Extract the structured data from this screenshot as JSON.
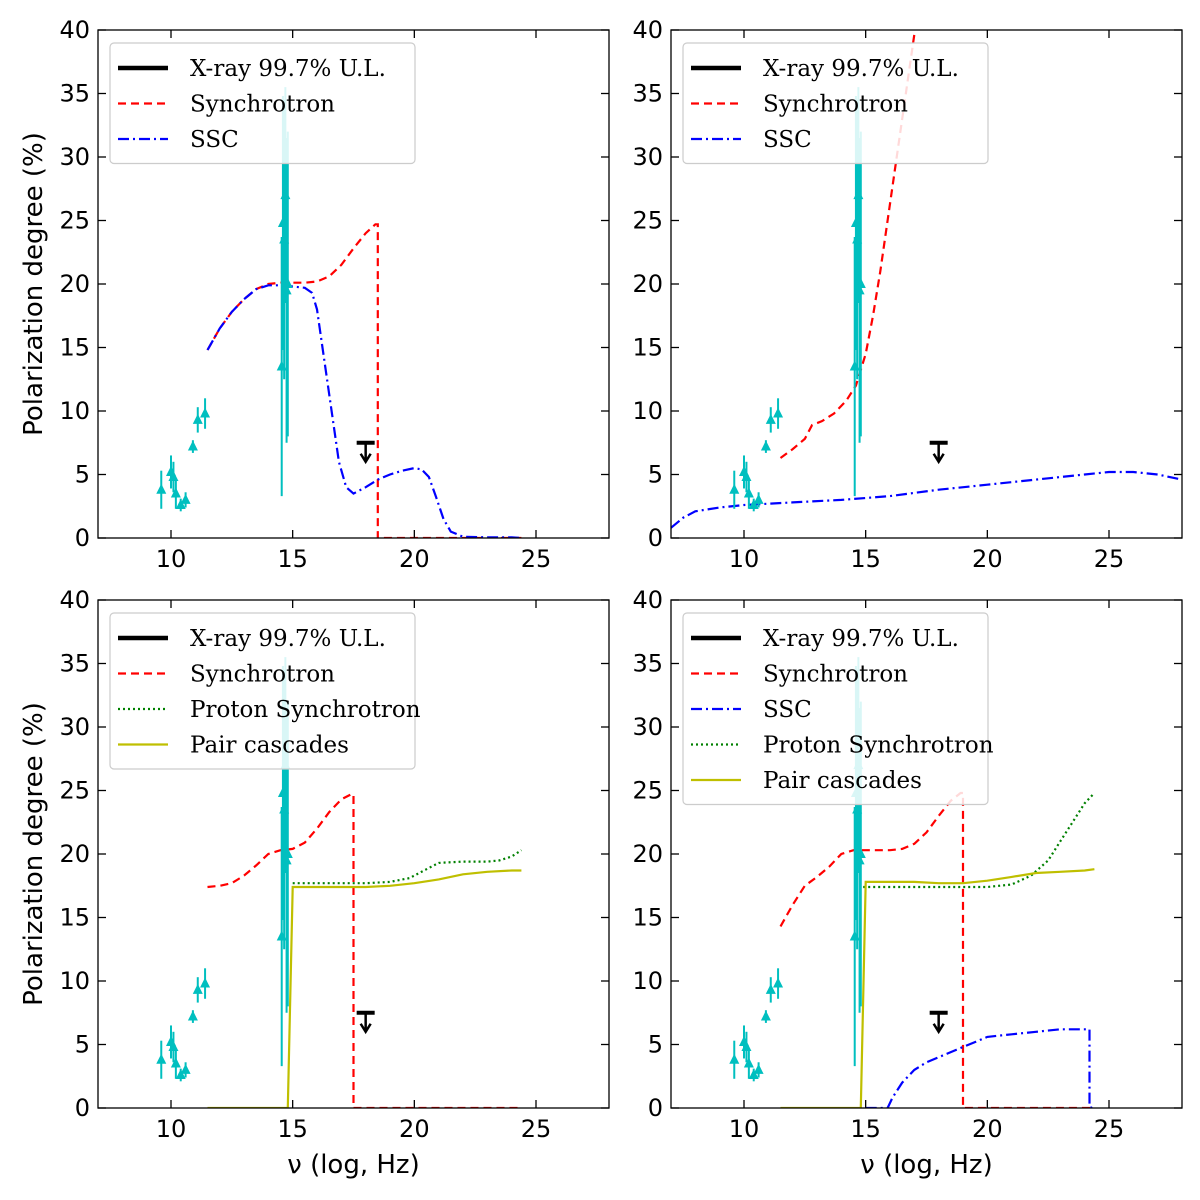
{
  "chart_data": [
    {
      "type": "line",
      "panel": "top-left",
      "xlabel": "",
      "ylabel": "Polarization degree (%)",
      "xlim": [
        7,
        28
      ],
      "ylim": [
        0,
        40
      ],
      "xticks": [
        10,
        15,
        20,
        25
      ],
      "yticks": [
        0,
        5,
        10,
        15,
        20,
        25,
        30,
        35,
        40
      ],
      "legend_position": "top-left",
      "legend": [
        {
          "label": "X-ray 99.7% U.L.",
          "style": "upper-limit"
        },
        {
          "label": "Synchrotron",
          "style": "sync"
        },
        {
          "label": "SSC",
          "style": "ssc"
        }
      ],
      "series": [
        {
          "name": "Synchrotron",
          "style": "sync",
          "x": [
            11.5,
            12,
            12.5,
            13,
            13.5,
            14,
            14.5,
            15,
            15.5,
            16,
            16.5,
            17,
            17.5,
            18,
            18.4,
            18.5,
            18.5,
            19,
            20,
            21,
            22,
            23,
            24,
            24.4
          ],
          "y": [
            14.8,
            16.5,
            17.8,
            18.8,
            19.6,
            20,
            20.1,
            20.1,
            20.1,
            20.2,
            20.6,
            21.5,
            22.8,
            24,
            24.7,
            24.7,
            0,
            0,
            0,
            0,
            0,
            0,
            0,
            0
          ]
        },
        {
          "name": "SSC",
          "style": "ssc",
          "x": [
            11.5,
            12,
            12.5,
            13,
            13.5,
            14,
            14.5,
            15,
            15.5,
            15.8,
            16,
            16.3,
            16.6,
            16.9,
            17.2,
            17.5,
            18,
            18.5,
            19,
            19.5,
            20,
            20.3,
            20.6,
            20.9,
            21.2,
            21.5,
            22,
            23,
            24,
            24.4
          ],
          "y": [
            14.8,
            16.5,
            17.8,
            18.8,
            19.6,
            19.9,
            19.9,
            19.8,
            19.7,
            19.3,
            18,
            14,
            10,
            6,
            4,
            3.5,
            4,
            4.6,
            5,
            5.3,
            5.5,
            5.4,
            4.8,
            3.2,
            1.5,
            0.5,
            0.1,
            0.05,
            0.05,
            0
          ]
        }
      ],
      "points": {
        "x": [
          9.6,
          10,
          10.1,
          10.2,
          10.4,
          10.6,
          10.9,
          11.1,
          11.4,
          14.55,
          14.6,
          14.65,
          14.7,
          14.75,
          14.8
        ],
        "y": [
          3.8,
          5.2,
          4.8,
          3.5,
          2.6,
          3.0,
          7.2,
          9.3,
          9.8,
          13.5,
          24.8,
          23.5,
          27,
          19.5,
          20
        ],
        "err": [
          1.5,
          1.3,
          1.2,
          1.2,
          0.5,
          0.6,
          0.5,
          1.0,
          1.2,
          10.2,
          10,
          11,
          8.5,
          12,
          12
        ]
      },
      "upper_limit": {
        "x": 18,
        "y": 7.5
      }
    },
    {
      "type": "line",
      "panel": "top-right",
      "xlabel": "",
      "ylabel": "",
      "xlim": [
        7,
        28
      ],
      "ylim": [
        0,
        40
      ],
      "xticks": [
        10,
        15,
        20,
        25
      ],
      "yticks": [
        0,
        5,
        10,
        15,
        20,
        25,
        30,
        35,
        40
      ],
      "legend_position": "top-left",
      "legend": [
        {
          "label": "X-ray 99.7% U.L.",
          "style": "upper-limit"
        },
        {
          "label": "Synchrotron",
          "style": "sync"
        },
        {
          "label": "SSC",
          "style": "ssc"
        }
      ],
      "series": [
        {
          "name": "Synchrotron",
          "style": "sync",
          "x": [
            11.5,
            12,
            12.5,
            12.8,
            13.2,
            13.7,
            14.2,
            14.6,
            15,
            15.3,
            15.6,
            15.9,
            16.2,
            16.5,
            16.8,
            17.1
          ],
          "y": [
            6.3,
            7,
            7.8,
            8.9,
            9.2,
            9.8,
            10.8,
            12,
            14.5,
            17.5,
            21,
            25,
            29,
            33,
            37,
            41
          ]
        },
        {
          "name": "SSC",
          "style": "ssc",
          "x": [
            7,
            7.5,
            8,
            9,
            10,
            12,
            14,
            16,
            18,
            20,
            22,
            24,
            25,
            26,
            27,
            28
          ],
          "y": [
            0.8,
            1.6,
            2.1,
            2.4,
            2.6,
            2.8,
            3.0,
            3.3,
            3.8,
            4.2,
            4.6,
            5.0,
            5.2,
            5.2,
            5.0,
            4.6
          ]
        }
      ],
      "points": {
        "x": [
          9.6,
          10,
          10.1,
          10.2,
          10.4,
          10.6,
          10.9,
          11.1,
          11.4,
          14.55,
          14.6,
          14.65,
          14.7,
          14.75,
          14.8
        ],
        "y": [
          3.8,
          5.2,
          4.8,
          3.5,
          2.6,
          3.0,
          7.2,
          9.3,
          9.8,
          13.5,
          24.8,
          23.5,
          27,
          19.5,
          20
        ],
        "err": [
          1.5,
          1.3,
          1.2,
          1.2,
          0.5,
          0.6,
          0.5,
          1.0,
          1.2,
          10.2,
          10,
          11,
          8.5,
          12,
          12
        ]
      },
      "upper_limit": {
        "x": 18,
        "y": 7.5
      }
    },
    {
      "type": "line",
      "panel": "bottom-left",
      "xlabel": "ν (log, Hz)",
      "ylabel": "Polarization degree (%)",
      "xlim": [
        7,
        28
      ],
      "ylim": [
        0,
        40
      ],
      "xticks": [
        10,
        15,
        20,
        25
      ],
      "yticks": [
        0,
        5,
        10,
        15,
        20,
        25,
        30,
        35,
        40
      ],
      "legend_position": "top-left",
      "legend": [
        {
          "label": "X-ray 99.7% U.L.",
          "style": "upper-limit"
        },
        {
          "label": "Synchrotron",
          "style": "sync"
        },
        {
          "label": "Proton Synchrotron",
          "style": "proton"
        },
        {
          "label": "Pair cascades",
          "style": "pair"
        }
      ],
      "series": [
        {
          "name": "Synchrotron",
          "style": "sync",
          "x": [
            11.5,
            12,
            12.5,
            13,
            13.5,
            14,
            14.5,
            15,
            15.5,
            16,
            16.5,
            17,
            17.4,
            17.5,
            17.5,
            18,
            19,
            20,
            21,
            22,
            23,
            24,
            24.4
          ],
          "y": [
            17.4,
            17.5,
            17.7,
            18.3,
            19.1,
            20,
            20.3,
            20.4,
            20.9,
            22,
            23.3,
            24.3,
            24.7,
            24.7,
            0,
            0,
            0,
            0,
            0,
            0,
            0,
            0,
            0
          ]
        },
        {
          "name": "Proton Synchrotron",
          "style": "proton",
          "x": [
            15,
            15.2,
            16,
            17,
            18,
            19,
            19.8,
            20.5,
            21,
            22,
            23,
            23.5,
            24,
            24.4
          ],
          "y": [
            17.7,
            17.7,
            17.7,
            17.7,
            17.7,
            17.8,
            18.1,
            18.8,
            19.3,
            19.4,
            19.4,
            19.5,
            19.8,
            20.3
          ]
        },
        {
          "name": "Pair cascades",
          "style": "pair",
          "x": [
            11.5,
            13,
            14.8,
            15.0,
            15.2,
            16,
            17,
            18,
            19,
            20,
            21,
            22,
            23,
            24,
            24.4
          ],
          "y": [
            0,
            0,
            0,
            17.4,
            17.4,
            17.4,
            17.4,
            17.4,
            17.5,
            17.7,
            18,
            18.4,
            18.6,
            18.7,
            18.7
          ]
        }
      ],
      "points": {
        "x": [
          9.6,
          10,
          10.1,
          10.2,
          10.4,
          10.6,
          10.9,
          11.1,
          11.4,
          14.55,
          14.6,
          14.65,
          14.7,
          14.75,
          14.8
        ],
        "y": [
          3.8,
          5.2,
          4.8,
          3.5,
          2.6,
          3.0,
          7.2,
          9.3,
          9.8,
          13.5,
          24.8,
          23.5,
          27,
          19.5,
          20
        ],
        "err": [
          1.5,
          1.3,
          1.2,
          1.2,
          0.5,
          0.6,
          0.5,
          1.0,
          1.2,
          10.2,
          10,
          11,
          8.5,
          12,
          12
        ]
      },
      "upper_limit": {
        "x": 18,
        "y": 7.5
      }
    },
    {
      "type": "line",
      "panel": "bottom-right",
      "xlabel": "ν (log, Hz)",
      "ylabel": "",
      "xlim": [
        7,
        28
      ],
      "ylim": [
        0,
        40
      ],
      "xticks": [
        10,
        15,
        20,
        25
      ],
      "yticks": [
        0,
        5,
        10,
        15,
        20,
        25,
        30,
        35,
        40
      ],
      "legend_position": "top-left",
      "legend": [
        {
          "label": "X-ray 99.7% U.L.",
          "style": "upper-limit"
        },
        {
          "label": "Synchrotron",
          "style": "sync"
        },
        {
          "label": "SSC",
          "style": "ssc"
        },
        {
          "label": "Proton Synchrotron",
          "style": "proton"
        },
        {
          "label": "Pair cascades",
          "style": "pair"
        }
      ],
      "series": [
        {
          "name": "Synchrotron",
          "style": "sync",
          "x": [
            11.5,
            12,
            12.5,
            13,
            13.5,
            14,
            14.5,
            15,
            15.5,
            16,
            16.5,
            17,
            17.5,
            18,
            18.5,
            18.9,
            19.0,
            19.0,
            20,
            21,
            22,
            23,
            24,
            24.4
          ],
          "y": [
            14.3,
            16,
            17.5,
            18.2,
            19,
            20,
            20.3,
            20.3,
            20.3,
            20.3,
            20.4,
            20.8,
            21.7,
            23,
            24.2,
            24.8,
            24.8,
            0,
            0,
            0,
            0,
            0,
            0,
            0
          ]
        },
        {
          "name": "SSC",
          "style": "ssc",
          "x": [
            15,
            15.9,
            16.1,
            16.5,
            17,
            17.5,
            18,
            18.5,
            19,
            19.5,
            20,
            21,
            22,
            23,
            24,
            24.2,
            24.2,
            24.3
          ],
          "y": [
            0,
            0,
            0.8,
            2.0,
            3.0,
            3.6,
            4.0,
            4.4,
            4.8,
            5.2,
            5.6,
            5.8,
            6.0,
            6.2,
            6.2,
            6.2,
            0.1,
            0
          ]
        },
        {
          "name": "Proton Synchrotron",
          "style": "proton",
          "x": [
            14.9,
            15.2,
            16,
            17,
            18,
            19,
            20,
            21,
            21.8,
            22.5,
            23,
            23.5,
            24,
            24.4
          ],
          "y": [
            17.4,
            17.4,
            17.4,
            17.4,
            17.4,
            17.4,
            17.4,
            17.6,
            18.3,
            19.5,
            21,
            22.5,
            24,
            24.8
          ]
        },
        {
          "name": "Pair cascades",
          "style": "pair",
          "x": [
            11.5,
            13,
            14.8,
            15.0,
            15.2,
            16,
            17,
            18,
            19,
            20,
            21,
            22,
            23,
            24,
            24.4
          ],
          "y": [
            0,
            0,
            0,
            17.8,
            17.8,
            17.8,
            17.8,
            17.7,
            17.7,
            17.9,
            18.2,
            18.5,
            18.6,
            18.7,
            18.8
          ]
        }
      ],
      "points": {
        "x": [
          9.6,
          10,
          10.1,
          10.2,
          10.4,
          10.6,
          10.9,
          11.1,
          11.4,
          14.55,
          14.6,
          14.65,
          14.7,
          14.75,
          14.8
        ],
        "y": [
          3.8,
          5.2,
          4.8,
          3.5,
          2.6,
          3.0,
          7.2,
          9.3,
          9.8,
          13.5,
          24.8,
          23.5,
          27,
          19.5,
          20
        ],
        "err": [
          1.5,
          1.3,
          1.2,
          1.2,
          0.5,
          0.6,
          0.5,
          1.0,
          1.2,
          10.2,
          10,
          11,
          8.5,
          12,
          12
        ]
      },
      "upper_limit": {
        "x": 18,
        "y": 7.5
      }
    }
  ],
  "styles": {
    "sync": {
      "color": "#ff0000",
      "dash": "8 5"
    },
    "ssc": {
      "color": "#0000ff",
      "dash": "11 4 2 4"
    },
    "proton": {
      "color": "#008000",
      "dash": "2 3"
    },
    "pair": {
      "color": "#bfbf00",
      "dash": ""
    },
    "upper-limit": {
      "color": "#000000",
      "dash": ""
    },
    "points": {
      "color": "#00bfbf"
    }
  }
}
